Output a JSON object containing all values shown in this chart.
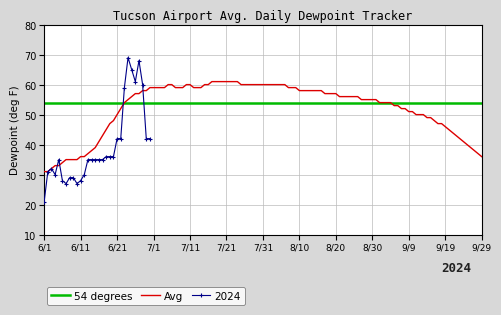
{
  "title": "Tucson Airport Avg. Daily Dewpoint Tracker",
  "ylabel": "Dewpoint (deg F)",
  "ylim": [
    10,
    80
  ],
  "yticks": [
    10,
    20,
    30,
    40,
    50,
    60,
    70,
    80
  ],
  "threshold": 54,
  "threshold_color": "#00bb00",
  "avg_color": "#dd0000",
  "current_color": "#000088",
  "year_label": "2024",
  "xtick_labels": [
    "6/1",
    "6/11",
    "6/21",
    "7/1",
    "7/11",
    "7/21",
    "7/31",
    "8/10",
    "8/20",
    "8/30",
    "9/9",
    "9/19",
    "9/29"
  ],
  "xtick_positions": [
    0,
    10,
    20,
    30,
    40,
    50,
    60,
    70,
    80,
    90,
    100,
    110,
    120
  ],
  "bg_color": "#ffffff",
  "outer_bg": "#d8d8d8",
  "grid_color": "#bbbbbb",
  "avg_data": [
    31,
    31,
    32,
    33,
    33,
    34,
    35,
    35,
    35,
    35,
    36,
    36,
    37,
    38,
    39,
    41,
    43,
    45,
    47,
    48,
    50,
    52,
    54,
    55,
    56,
    57,
    57,
    58,
    58,
    59,
    59,
    59,
    59,
    59,
    60,
    60,
    59,
    59,
    59,
    60,
    60,
    59,
    59,
    59,
    60,
    60,
    61,
    61,
    61,
    61,
    61,
    61,
    61,
    61,
    60,
    60,
    60,
    60,
    60,
    60,
    60,
    60,
    60,
    60,
    60,
    60,
    60,
    59,
    59,
    59,
    58,
    58,
    58,
    58,
    58,
    58,
    58,
    57,
    57,
    57,
    57,
    56,
    56,
    56,
    56,
    56,
    56,
    55,
    55,
    55,
    55,
    55,
    54,
    54,
    54,
    54,
    53,
    53,
    52,
    52,
    51,
    51,
    50,
    50,
    50,
    49,
    49,
    48,
    47,
    47,
    46,
    45,
    44,
    43,
    42,
    41,
    40,
    39,
    38,
    37,
    36
  ],
  "current_data_x": [
    0,
    1,
    2,
    3,
    4,
    5,
    6,
    7,
    8,
    9,
    10,
    11,
    12,
    13,
    14,
    15,
    16,
    17,
    18,
    19,
    20,
    21,
    22,
    23,
    24,
    25,
    26,
    27,
    28,
    29
  ],
  "current_data_y": [
    21,
    31,
    32,
    30,
    35,
    28,
    27,
    29,
    29,
    27,
    28,
    30,
    35,
    35,
    35,
    35,
    35,
    36,
    36,
    36,
    42,
    42,
    59,
    69,
    65,
    61,
    68,
    60,
    42,
    42
  ]
}
